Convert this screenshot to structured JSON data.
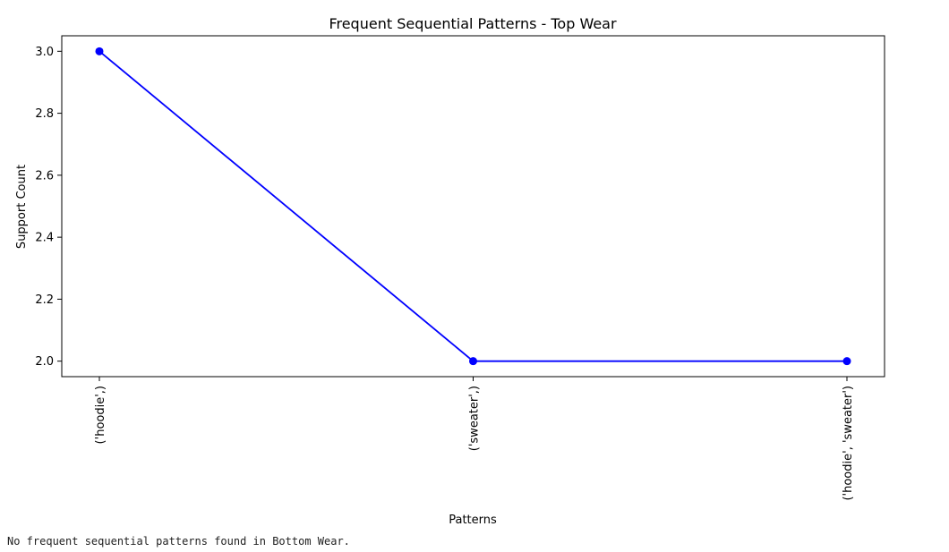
{
  "chart_data": {
    "type": "line",
    "title": "Frequent Sequential Patterns - Top Wear",
    "xlabel": "Patterns",
    "ylabel": "Support Count",
    "categories": [
      "('hoodie',)",
      "('sweater',)",
      "('hoodie', 'sweater')"
    ],
    "series": [
      {
        "values": [
          3,
          2,
          2
        ]
      }
    ],
    "ylim": [
      1.95,
      3.05
    ],
    "yticks": [
      2.0,
      2.2,
      2.4,
      2.6,
      2.8,
      3.0
    ],
    "ytick_labels": [
      "2.0",
      "2.2",
      "2.4",
      "2.6",
      "2.8",
      "3.0"
    ],
    "grid": false,
    "line_color": "#0000ff",
    "marker": "circle"
  },
  "output": {
    "message": "No frequent sequential patterns found in Bottom Wear."
  }
}
